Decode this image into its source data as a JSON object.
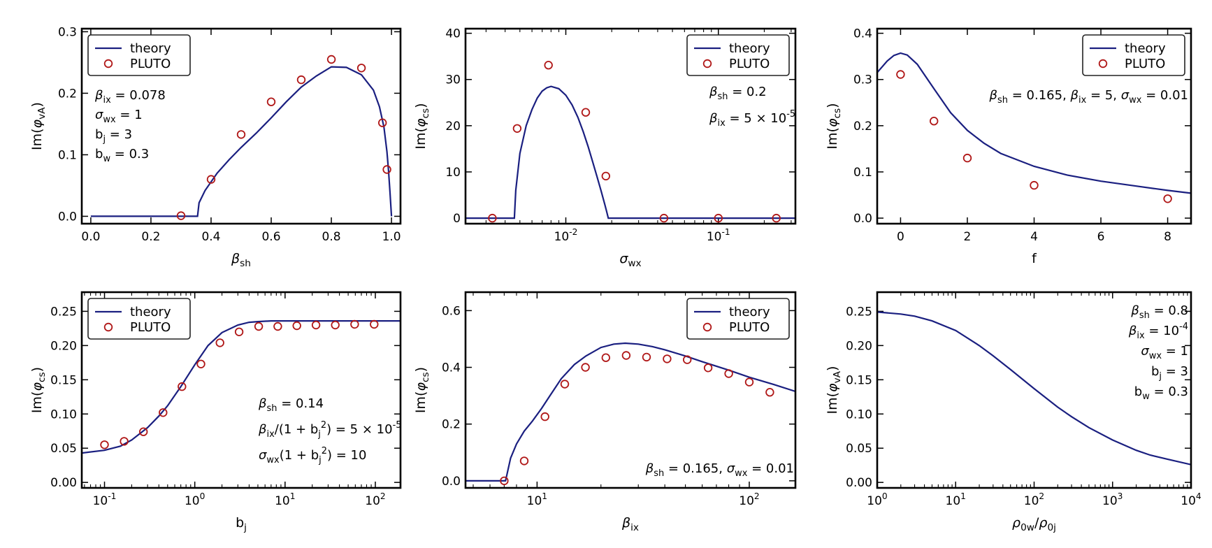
{
  "colors": {
    "theory": "#1a1f80",
    "pluto": "#b01717"
  },
  "chart_data": [
    {
      "type": "line",
      "xscale": "linear",
      "xlim": [
        -0.03,
        1.03
      ],
      "ylim": [
        -0.012,
        0.305
      ],
      "xticks": [
        0,
        0.2,
        0.4,
        0.6,
        0.8,
        1.0
      ],
      "xtick_labels": [
        "0.0",
        "0.2",
        "0.4",
        "0.6",
        "0.8",
        "1.0"
      ],
      "yticks": [
        0,
        0.1,
        0.2,
        0.3
      ],
      "ytick_labels": [
        "0.0",
        "0.1",
        "0.2",
        "0.3"
      ],
      "xlabel": "β_sh",
      "ylabel": "Im(φ_vA)",
      "legend": {
        "entries": [
          "theory",
          "PLUTO"
        ],
        "placement": "top-left"
      },
      "annotations": [
        "β_ix = 0.078",
        "σ_wx = 1",
        "b_j = 3",
        "b_w = 0.3"
      ],
      "series": [
        {
          "name": "theory",
          "kind": "line",
          "x": [
            0,
            0.35,
            0.355,
            0.36,
            0.38,
            0.42,
            0.46,
            0.5,
            0.55,
            0.6,
            0.65,
            0.7,
            0.75,
            0.8,
            0.85,
            0.9,
            0.94,
            0.96,
            0.975,
            0.985,
            0.99,
            0.995,
            1.0
          ],
          "y": [
            0,
            0,
            0,
            0.022,
            0.042,
            0.07,
            0.092,
            0.112,
            0.135,
            0.16,
            0.186,
            0.21,
            0.228,
            0.243,
            0.242,
            0.23,
            0.205,
            0.178,
            0.145,
            0.105,
            0.075,
            0.04,
            0
          ]
        },
        {
          "name": "PLUTO",
          "kind": "markers",
          "x": [
            0.3,
            0.4,
            0.5,
            0.6,
            0.7,
            0.8,
            0.9,
            0.97,
            0.985
          ],
          "y": [
            0.001,
            0.06,
            0.133,
            0.186,
            0.222,
            0.255,
            0.241,
            0.152,
            0.076
          ]
        }
      ]
    },
    {
      "type": "line",
      "xscale": "log",
      "xlim": [
        0.0022,
        0.32
      ],
      "ylim": [
        -1.2,
        41
      ],
      "xticks": [
        0.01,
        0.1
      ],
      "xtick_labels": [
        "10^-2",
        "10^-1"
      ],
      "yticks": [
        0,
        10,
        20,
        30,
        40
      ],
      "ytick_labels": [
        "0",
        "10",
        "20",
        "30",
        "40"
      ],
      "xlabel": "σ_wx",
      "ylabel": "Im(φ_cs)",
      "legend": {
        "entries": [
          "theory",
          "PLUTO"
        ],
        "placement": "top-right"
      },
      "annotations": [
        "β_sh = 0.2",
        "β_ix = 5 × 10^-5"
      ],
      "series": [
        {
          "name": "theory",
          "kind": "line",
          "x": [
            0.0022,
            0.0046,
            0.0047,
            0.005,
            0.0055,
            0.006,
            0.0065,
            0.007,
            0.0075,
            0.008,
            0.009,
            0.01,
            0.011,
            0.012,
            0.013,
            0.014,
            0.015,
            0.016,
            0.017,
            0.018,
            0.0185,
            0.019,
            0.32
          ],
          "y": [
            0,
            0,
            6,
            14,
            20,
            23.5,
            26,
            27.5,
            28.2,
            28.5,
            28,
            26.6,
            24.5,
            21.8,
            18.7,
            15.5,
            12.2,
            9,
            6,
            3,
            1.5,
            0,
            0
          ]
        },
        {
          "name": "PLUTO",
          "kind": "markers",
          "x": [
            0.0033,
            0.0048,
            0.0077,
            0.0135,
            0.0183,
            0.044,
            0.1,
            0.24
          ],
          "y": [
            0,
            19.4,
            33.1,
            22.9,
            9.1,
            0,
            0,
            0
          ]
        }
      ]
    },
    {
      "type": "line",
      "xscale": "linear",
      "xlim": [
        -0.7,
        8.7
      ],
      "ylim": [
        -0.012,
        0.41
      ],
      "xticks": [
        0,
        2,
        4,
        6,
        8
      ],
      "xtick_labels": [
        "0",
        "2",
        "4",
        "6",
        "8"
      ],
      "yticks": [
        0,
        0.1,
        0.2,
        0.3,
        0.4
      ],
      "ytick_labels": [
        "0.0",
        "0.1",
        "0.2",
        "0.3",
        "0.4"
      ],
      "xlabel": "f",
      "ylabel": "Im(φ_cs)",
      "legend": {
        "entries": [
          "theory",
          "PLUTO"
        ],
        "placement": "top-right"
      },
      "annotations": [
        "β_sh = 0.165, β_ix = 5, σ_wx = 0.01"
      ],
      "series": [
        {
          "name": "theory",
          "kind": "line",
          "x": [
            -0.7,
            -0.4,
            -0.2,
            0,
            0.2,
            0.5,
            1,
            1.5,
            2,
            2.5,
            3,
            4,
            5,
            6,
            7,
            8,
            8.7
          ],
          "y": [
            0.315,
            0.34,
            0.352,
            0.357,
            0.353,
            0.333,
            0.28,
            0.228,
            0.19,
            0.162,
            0.14,
            0.112,
            0.093,
            0.08,
            0.07,
            0.06,
            0.054
          ]
        },
        {
          "name": "PLUTO",
          "kind": "markers",
          "x": [
            0,
            1,
            2,
            4,
            8
          ],
          "y": [
            0.311,
            0.21,
            0.13,
            0.071,
            0.042
          ]
        }
      ]
    },
    {
      "type": "line",
      "xscale": "log",
      "xlim": [
        0.056,
        190
      ],
      "ylim": [
        -0.008,
        0.278
      ],
      "xticks": [
        0.1,
        1,
        10,
        100
      ],
      "xtick_labels": [
        "10^-1",
        "10^0",
        "10^1",
        "10^2"
      ],
      "yticks": [
        0,
        0.05,
        0.1,
        0.15,
        0.2,
        0.25
      ],
      "ytick_labels": [
        "0.00",
        "0.05",
        "0.10",
        "0.15",
        "0.20",
        "0.25"
      ],
      "xlabel": "b_j",
      "ylabel": "Im(φ_cs)",
      "legend": {
        "entries": [
          "theory",
          "PLUTO"
        ],
        "placement": "top-left"
      },
      "annotations": [
        "β_sh = 0.14",
        "β_ix/(1 + b_j^2) = 5 × 10^-5",
        "σ_wx(1 + b_j^2) = 10"
      ],
      "series": [
        {
          "name": "theory",
          "kind": "line",
          "x": [
            0.056,
            0.1,
            0.15,
            0.2,
            0.3,
            0.4,
            0.5,
            0.7,
            1,
            1.4,
            2,
            3,
            4,
            5,
            7,
            10,
            20,
            50,
            100,
            190
          ],
          "y": [
            0.043,
            0.047,
            0.053,
            0.062,
            0.08,
            0.097,
            0.112,
            0.14,
            0.172,
            0.2,
            0.219,
            0.23,
            0.234,
            0.235,
            0.236,
            0.236,
            0.236,
            0.236,
            0.236,
            0.236
          ]
        },
        {
          "name": "PLUTO",
          "kind": "markers",
          "x": [
            0.1,
            0.165,
            0.27,
            0.445,
            0.72,
            1.17,
            1.9,
            3.1,
            5.1,
            8.3,
            13.5,
            22,
            36,
            59,
            97
          ],
          "y": [
            0.055,
            0.06,
            0.074,
            0.102,
            0.14,
            0.173,
            0.204,
            0.22,
            0.228,
            0.228,
            0.229,
            0.23,
            0.23,
            0.231,
            0.231
          ]
        }
      ]
    },
    {
      "type": "line",
      "xscale": "log",
      "xlim": [
        4.6,
        165
      ],
      "ylim": [
        -0.025,
        0.665
      ],
      "xticks": [
        10,
        100
      ],
      "xtick_labels": [
        "10^1",
        "10^2"
      ],
      "yticks": [
        0,
        0.2,
        0.4,
        0.6
      ],
      "ytick_labels": [
        "0.0",
        "0.2",
        "0.4",
        "0.6"
      ],
      "xlabel": "β_ix",
      "ylabel": "Im(φ_cs)",
      "legend": {
        "entries": [
          "theory",
          "PLUTO"
        ],
        "placement": "top-right"
      },
      "annotations": [
        "β_sh = 0.165, σ_wx = 0.01"
      ],
      "series": [
        {
          "name": "theory",
          "kind": "line",
          "x": [
            4.6,
            7.1,
            7.2,
            7.5,
            8,
            8.7,
            9.5,
            10.5,
            11.5,
            13,
            15,
            17,
            20,
            23,
            26,
            30,
            35,
            40,
            50,
            60,
            80,
            100,
            130,
            165
          ],
          "y": [
            0,
            0,
            0.02,
            0.08,
            0.13,
            0.175,
            0.21,
            0.255,
            0.3,
            0.36,
            0.41,
            0.44,
            0.47,
            0.482,
            0.485,
            0.482,
            0.473,
            0.462,
            0.44,
            0.42,
            0.39,
            0.365,
            0.34,
            0.315
          ]
        },
        {
          "name": "PLUTO",
          "kind": "markers",
          "x": [
            7,
            8.7,
            10.9,
            13.5,
            16.9,
            21.1,
            26.3,
            32.8,
            41,
            51,
            64,
            80,
            100,
            125
          ],
          "y": [
            0,
            0.07,
            0.226,
            0.341,
            0.4,
            0.434,
            0.442,
            0.436,
            0.43,
            0.427,
            0.398,
            0.378,
            0.348,
            0.312
          ]
        }
      ]
    },
    {
      "type": "line",
      "xscale": "log",
      "xlim": [
        1,
        10000
      ],
      "ylim": [
        -0.008,
        0.278
      ],
      "xticks": [
        1,
        10,
        100,
        1000,
        10000
      ],
      "xtick_labels": [
        "10^0",
        "10^1",
        "10^2",
        "10^3",
        "10^4"
      ],
      "yticks": [
        0,
        0.05,
        0.1,
        0.15,
        0.2,
        0.25
      ],
      "ytick_labels": [
        "0.00",
        "0.05",
        "0.10",
        "0.15",
        "0.20",
        "0.25"
      ],
      "xlabel": "ρ_0w/ρ_0j",
      "ylabel": "Im(φ_vA)",
      "legend": null,
      "annotations": [
        "β_sh = 0.8",
        "β_ix = 10^-4",
        "σ_wx = 1",
        "b_j = 3",
        "b_w = 0.3"
      ],
      "series": [
        {
          "name": "theory",
          "kind": "line",
          "x": [
            1,
            2,
            3,
            5,
            10,
            20,
            30,
            50,
            100,
            200,
            300,
            500,
            1000,
            2000,
            3000,
            5000,
            10000
          ],
          "y": [
            0.249,
            0.246,
            0.243,
            0.236,
            0.222,
            0.2,
            0.185,
            0.165,
            0.137,
            0.11,
            0.096,
            0.08,
            0.062,
            0.047,
            0.04,
            0.034,
            0.026
          ]
        }
      ]
    }
  ]
}
